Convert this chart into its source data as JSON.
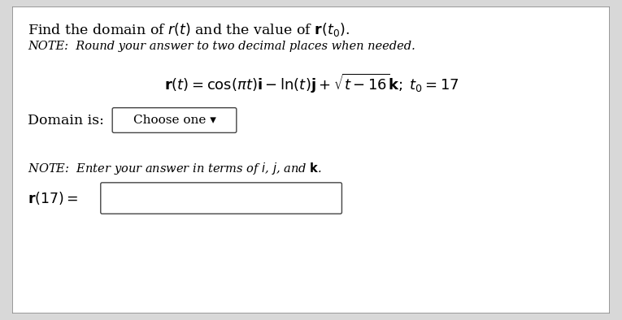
{
  "title_text": "Find the domain of r(t) and the value of r(t₀).",
  "title_normal": "Find the domain of ",
  "title_bold_r": "r",
  "title_mid": "(t) and the value of ",
  "title_bold_r2": "r",
  "title_end": "(t₀).",
  "note1_text": "NOTE:  Round your answer to two decimal places when needed.",
  "formula_text": "$\\mathbf{r}(t) = \\cos(\\pi t)\\mathbf{i} - \\ln(t)\\mathbf{j} + \\sqrt{t - 16}\\mathbf{k};\\; t_0 = 17$",
  "domain_label": "Domain is:",
  "domain_box_text": "Choose one ▾",
  "note2_text": "NOTE:  Enter your answer in terms of i, j, and k.",
  "r17_label": "r(17) =",
  "bg_color": "#d8d8d8",
  "panel_color": "#ffffff",
  "text_color": "#000000",
  "border_color": "#888888",
  "font_size_title": 12.5,
  "font_size_note": 10.5,
  "font_size_formula": 13,
  "font_size_domain": 12.5,
  "font_size_r17": 12.5
}
